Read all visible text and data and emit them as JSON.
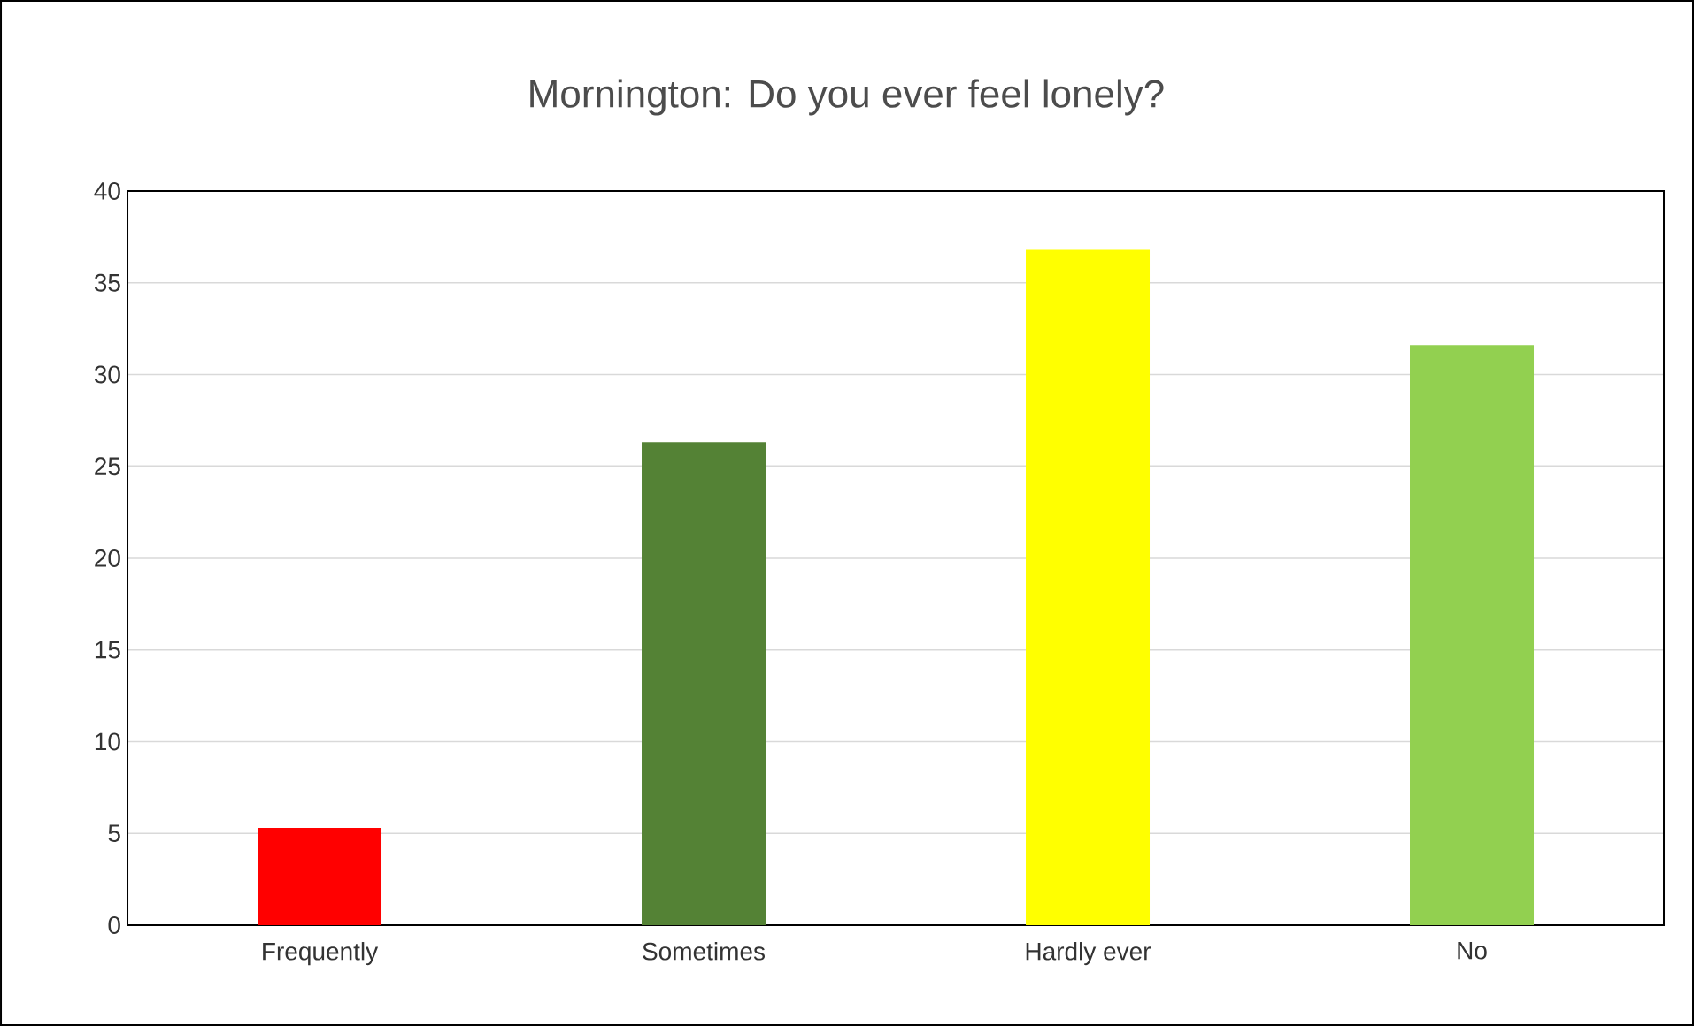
{
  "chart_data": {
    "type": "bar",
    "title": "Mornington: Do you ever feel lonely?",
    "categories": [
      "Frequently",
      "Sometimes",
      "Hardly ever",
      "No"
    ],
    "values": [
      5.3,
      26.3,
      36.8,
      31.6
    ],
    "colors": [
      "#ff0000",
      "#548235",
      "#ffff00",
      "#92d050"
    ],
    "ylim": [
      0,
      40
    ],
    "yticks": [
      0,
      5,
      10,
      15,
      20,
      25,
      30,
      35,
      40
    ],
    "grid": "y"
  }
}
